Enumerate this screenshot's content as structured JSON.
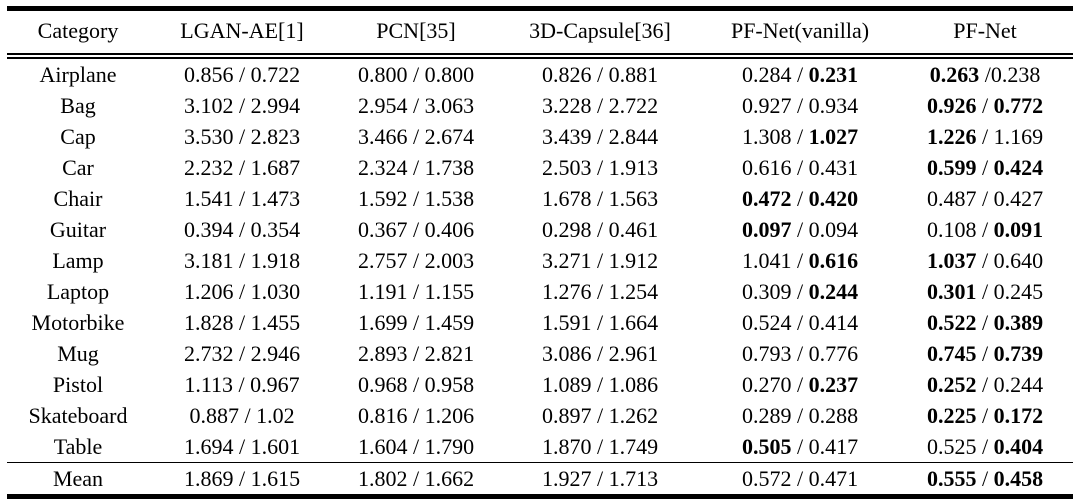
{
  "table": {
    "description": "Per-category quantitative comparison table (value pairs 'a / b', bold marks best results)",
    "text_color": "#000000",
    "background_color": "#ffffff",
    "columns": [
      "Category",
      "LGAN-AE[1]",
      "PCN[35]",
      "3D-Capsule[36]",
      "PF-Net(vanilla)",
      "PF-Net"
    ],
    "rows": [
      {
        "category": "Airplane",
        "cells": [
          {
            "left": "0.856",
            "right": "0.722"
          },
          {
            "left": "0.800",
            "right": "0.800"
          },
          {
            "left": "0.826",
            "right": "0.881"
          },
          {
            "left": "0.284",
            "right": "0.231",
            "right_bold": true
          },
          {
            "left": "0.263",
            "left_bold": true,
            "right": "0.238",
            "sep": " /"
          }
        ]
      },
      {
        "category": "Bag",
        "cells": [
          {
            "left": "3.102",
            "right": "2.994"
          },
          {
            "left": "2.954",
            "right": "3.063"
          },
          {
            "left": "3.228",
            "right": "2.722"
          },
          {
            "left": "0.927",
            "right": "0.934"
          },
          {
            "left": "0.926",
            "left_bold": true,
            "right": "0.772",
            "right_bold": true
          }
        ]
      },
      {
        "category": "Cap",
        "cells": [
          {
            "left": "3.530",
            "right": "2.823"
          },
          {
            "left": "3.466",
            "right": "2.674"
          },
          {
            "left": "3.439",
            "right": "2.844"
          },
          {
            "left": "1.308",
            "right": "1.027",
            "right_bold": true
          },
          {
            "left": "1.226",
            "left_bold": true,
            "right": "1.169"
          }
        ]
      },
      {
        "category": "Car",
        "cells": [
          {
            "left": "2.232",
            "right": "1.687"
          },
          {
            "left": "2.324",
            "right": "1.738"
          },
          {
            "left": "2.503",
            "right": "1.913"
          },
          {
            "left": "0.616",
            "right": "0.431"
          },
          {
            "left": "0.599",
            "left_bold": true,
            "right": "0.424",
            "right_bold": true
          }
        ]
      },
      {
        "category": "Chair",
        "cells": [
          {
            "left": "1.541",
            "right": "1.473"
          },
          {
            "left": "1.592",
            "right": "1.538"
          },
          {
            "left": "1.678",
            "right": "1.563"
          },
          {
            "left": "0.472",
            "left_bold": true,
            "right": "0.420",
            "right_bold": true
          },
          {
            "left": "0.487",
            "right": "0.427"
          }
        ]
      },
      {
        "category": "Guitar",
        "cells": [
          {
            "left": "0.394",
            "right": "0.354"
          },
          {
            "left": "0.367",
            "right": "0.406"
          },
          {
            "left": "0.298",
            "right": "0.461"
          },
          {
            "left": "0.097",
            "left_bold": true,
            "right": "0.094"
          },
          {
            "left": "0.108",
            "right": "0.091",
            "right_bold": true
          }
        ]
      },
      {
        "category": "Lamp",
        "cells": [
          {
            "left": "3.181",
            "right": "1.918"
          },
          {
            "left": "2.757",
            "right": "2.003"
          },
          {
            "left": "3.271",
            "right": "1.912"
          },
          {
            "left": "1.041",
            "right": "0.616",
            "right_bold": true
          },
          {
            "left": "1.037",
            "left_bold": true,
            "right": "0.640"
          }
        ]
      },
      {
        "category": "Laptop",
        "cells": [
          {
            "left": "1.206",
            "right": "1.030"
          },
          {
            "left": "1.191",
            "right": "1.155"
          },
          {
            "left": "1.276",
            "right": "1.254"
          },
          {
            "left": "0.309",
            "right": "0.244",
            "right_bold": true
          },
          {
            "left": "0.301",
            "left_bold": true,
            "right": "0.245"
          }
        ]
      },
      {
        "category": "Motorbike",
        "cells": [
          {
            "left": "1.828",
            "right": "1.455"
          },
          {
            "left": "1.699",
            "right": "1.459"
          },
          {
            "left": "1.591",
            "right": "1.664"
          },
          {
            "left": "0.524",
            "right": "0.414"
          },
          {
            "left": "0.522",
            "left_bold": true,
            "right": "0.389",
            "right_bold": true
          }
        ]
      },
      {
        "category": "Mug",
        "cells": [
          {
            "left": "2.732",
            "right": "2.946"
          },
          {
            "left": "2.893",
            "right": "2.821"
          },
          {
            "left": "3.086",
            "right": "2.961"
          },
          {
            "left": "0.793",
            "right": "0.776"
          },
          {
            "left": "0.745",
            "left_bold": true,
            "right": "0.739",
            "right_bold": true
          }
        ]
      },
      {
        "category": "Pistol",
        "cells": [
          {
            "left": "1.113",
            "right": "0.967"
          },
          {
            "left": "0.968",
            "right": "0.958"
          },
          {
            "left": "1.089",
            "right": "1.086"
          },
          {
            "left": "0.270",
            "right": "0.237",
            "right_bold": true
          },
          {
            "left": "0.252",
            "left_bold": true,
            "right": "0.244"
          }
        ]
      },
      {
        "category": "Skateboard",
        "cells": [
          {
            "left": "0.887",
            "right": "1.02"
          },
          {
            "left": "0.816",
            "right": "1.206"
          },
          {
            "left": "0.897",
            "right": "1.262"
          },
          {
            "left": "0.289",
            "right": "0.288"
          },
          {
            "left": "0.225",
            "left_bold": true,
            "right": "0.172",
            "right_bold": true
          }
        ]
      },
      {
        "category": "Table",
        "cells": [
          {
            "left": "1.694",
            "right": "1.601"
          },
          {
            "left": "1.604",
            "right": "1.790"
          },
          {
            "left": "1.870",
            "right": "1.749"
          },
          {
            "left": "0.505",
            "left_bold": true,
            "right": "0.417"
          },
          {
            "left": "0.525",
            "right": "0.404",
            "right_bold": true
          }
        ]
      },
      {
        "category": "Mean",
        "is_mean": true,
        "cells": [
          {
            "left": "1.869",
            "right": "1.615"
          },
          {
            "left": "1.802",
            "right": "1.662"
          },
          {
            "left": "1.927",
            "right": "1.713"
          },
          {
            "left": "0.572",
            "right": "0.471"
          },
          {
            "left": "0.555",
            "left_bold": true,
            "right": "0.458",
            "right_bold": true
          }
        ]
      }
    ],
    "default_separator": " / "
  }
}
